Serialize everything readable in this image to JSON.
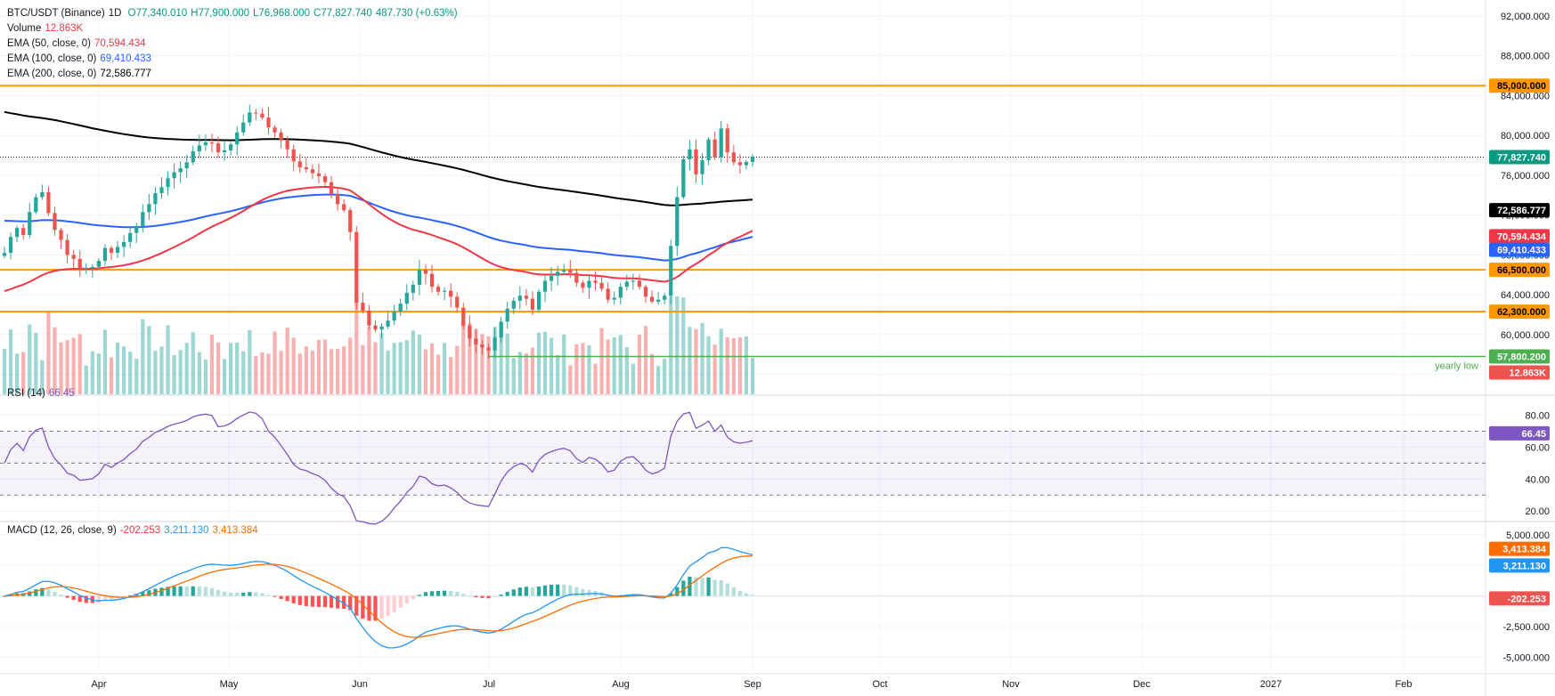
{
  "header": {
    "symbol": "BTC/USDT (Binance)",
    "interval": "1D",
    "open": "O77,340.010",
    "high": "H77,900.000",
    "low": "L76,968.000",
    "close": "C77,827.740",
    "change": "487.730 (+0.63%)",
    "volume_label": "Volume",
    "volume_value": "12.863K",
    "ema50_label": "EMA (50, close, 0)",
    "ema50_value": "70,594.434",
    "ema100_label": "EMA (100, close, 0)",
    "ema100_value": "69,410.433",
    "ema200_label": "EMA (200, close, 0)",
    "ema200_value": "72,586.777"
  },
  "rsi_legend": {
    "label": "RSI (14)",
    "value": "66.45"
  },
  "macd_legend": {
    "label": "MACD (12, 26, close, 9)",
    "hist": "-202.253",
    "macd": "3,211.130",
    "signal": "3,413.384"
  },
  "colors": {
    "up": "#26a69a",
    "down": "#ef5350",
    "ema50": "#f23645",
    "ema100": "#2962ff",
    "ema200": "#000000",
    "level": "#ff9800",
    "yearly_low": "#4caf50",
    "rsi": "#7e57c2",
    "macd": "#2196f3",
    "signal": "#ff6d00"
  },
  "chart_data": [
    {
      "type": "candlestick",
      "panel": "price",
      "x_tick_labels": [
        "Apr",
        "May",
        "Jun",
        "Jul",
        "Aug",
        "Sep",
        "Oct",
        "Nov",
        "Dec",
        "2027",
        "Feb"
      ],
      "y_tick_labels": [
        "92,000.000",
        "88,000.000",
        "84,000.000",
        "80,000.000",
        "76,000.000",
        "72,000.000",
        "68,000.000",
        "64,000.000",
        "60,000.000",
        "56,000.000"
      ],
      "ylim": [
        54000,
        93600
      ],
      "candles_shown": "Mar 12 to Sep 3",
      "close_series": [
        68200,
        69800,
        70700,
        70000,
        72300,
        73800,
        74300,
        72200,
        70500,
        69500,
        68000,
        67600,
        66600,
        66700,
        66800,
        67400,
        68700,
        68200,
        68800,
        69300,
        70200,
        70900,
        72300,
        73100,
        74200,
        74800,
        75700,
        76300,
        76700,
        77300,
        78400,
        79000,
        79300,
        79200,
        78300,
        78500,
        79100,
        80300,
        81300,
        82300,
        82200,
        81800,
        80800,
        80300,
        79500,
        78600,
        77400,
        76800,
        76600,
        76200,
        75900,
        75300,
        74100,
        73100,
        72500,
        70300,
        63200,
        62400,
        60900,
        60500,
        60800,
        61400,
        62300,
        63100,
        64200,
        65000,
        66500,
        66100,
        64800,
        64300,
        64400,
        63800,
        62700,
        60900,
        59600,
        59000,
        58700,
        58400,
        59700,
        61300,
        62600,
        63400,
        63900,
        63600,
        62500,
        64300,
        65400,
        65900,
        66300,
        66500,
        66200,
        65200,
        64700,
        65400,
        65200,
        64600,
        63500,
        63700,
        64800,
        65300,
        65400,
        64800,
        63800,
        63300,
        63500,
        63900,
        68900,
        73800,
        77600,
        78600,
        76100,
        77500,
        79600,
        77800,
        80700,
        78300,
        77300,
        77000,
        77340,
        77830
      ],
      "level_labels": [
        "85,000.000",
        "66,500.000",
        "62,300.000",
        "57,800.200"
      ],
      "last_price_label": "77,827.740",
      "ema_labels": [
        "72,586.777",
        "70,594.434",
        "69,410.433"
      ],
      "volume_label": "12.863K",
      "annotation": "yearly low"
    },
    {
      "type": "line",
      "panel": "rsi",
      "y_tick_labels": [
        "80.00",
        "60.00",
        "40.00",
        "20.00"
      ],
      "ylim": [
        14,
        92
      ],
      "value_label": "66.45"
    },
    {
      "type": "line",
      "panel": "macd",
      "y_tick_labels": [
        "5,000.000",
        "2,500.000",
        "-2,500.000",
        "-5,000.000"
      ],
      "ylim": [
        -6200,
        6000
      ],
      "macd_label": "3,211.130",
      "signal_label": "3,413.384",
      "hist_label": "-202.253"
    }
  ]
}
